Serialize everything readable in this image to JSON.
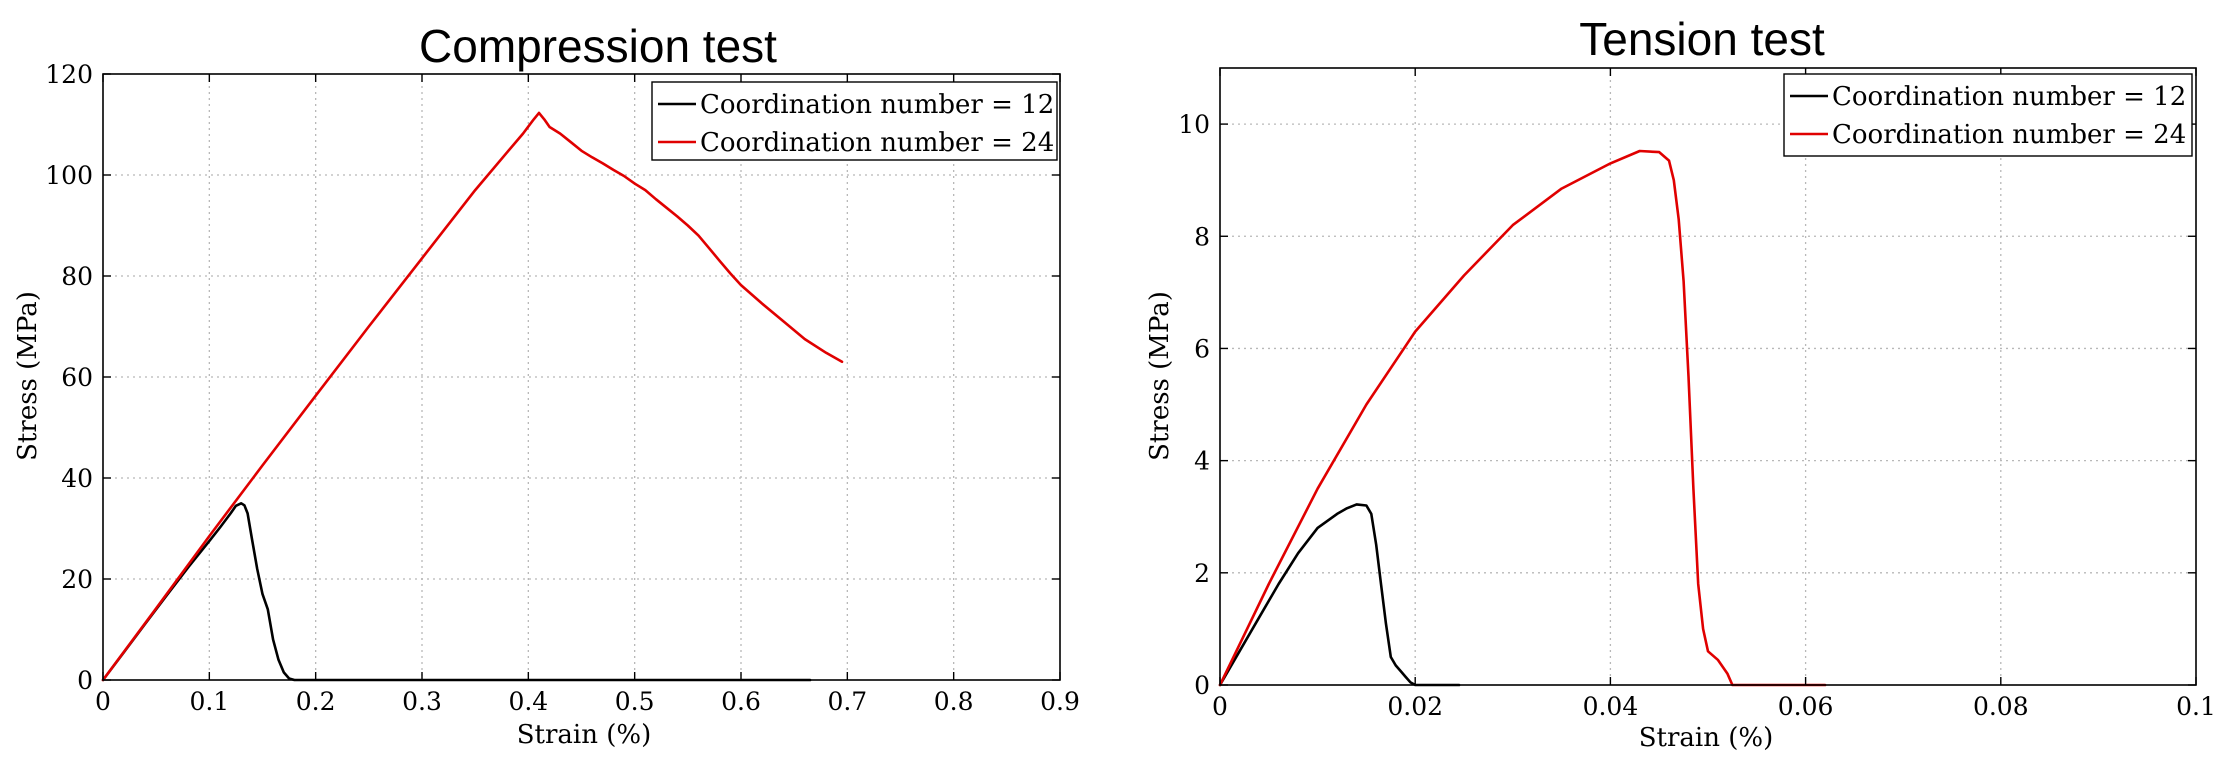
{
  "chart_data": [
    {
      "type": "line",
      "title": "Compression test",
      "xlabel": "Strain (%)",
      "ylabel": "Stress (MPa)",
      "xlim": [
        0,
        0.9
      ],
      "ylim": [
        0,
        120
      ],
      "xticks": [
        "0",
        "0.1",
        "0.2",
        "0.3",
        "0.4",
        "0.5",
        "0.6",
        "0.7",
        "0.8",
        "0.9"
      ],
      "yticks": [
        "0",
        "20",
        "40",
        "60",
        "80",
        "100",
        "120"
      ],
      "xtick_values": [
        0,
        0.1,
        0.2,
        0.3,
        0.4,
        0.5,
        0.6,
        0.7,
        0.8,
        0.9
      ],
      "ytick_values": [
        0,
        20,
        40,
        60,
        80,
        100,
        120
      ],
      "grid": true,
      "legend_position": "top-right",
      "series": [
        {
          "name": "Coordination number = 12",
          "color": "#000000",
          "points": [
            [
              0,
              0
            ],
            [
              0.02,
              5.6
            ],
            [
              0.04,
              11.2
            ],
            [
              0.06,
              16.8
            ],
            [
              0.08,
              22.3
            ],
            [
              0.1,
              27.5
            ],
            [
              0.11,
              30.2
            ],
            [
              0.12,
              33.0
            ],
            [
              0.125,
              34.5
            ],
            [
              0.13,
              35.0
            ],
            [
              0.133,
              34.6
            ],
            [
              0.136,
              33.0
            ],
            [
              0.14,
              28.0
            ],
            [
              0.145,
              22.0
            ],
            [
              0.15,
              17.0
            ],
            [
              0.155,
              14.0
            ],
            [
              0.16,
              8.0
            ],
            [
              0.165,
              4.0
            ],
            [
              0.17,
              1.5
            ],
            [
              0.175,
              0.3
            ],
            [
              0.18,
              0
            ],
            [
              0.3,
              0
            ],
            [
              0.5,
              0
            ],
            [
              0.665,
              0
            ]
          ]
        },
        {
          "name": "Coordination number = 24",
          "color": "#e00000",
          "points": [
            [
              0,
              0
            ],
            [
              0.05,
              14.2
            ],
            [
              0.1,
              28.5
            ],
            [
              0.15,
              42.5
            ],
            [
              0.2,
              56.3
            ],
            [
              0.25,
              70.0
            ],
            [
              0.3,
              83.5
            ],
            [
              0.35,
              97.0
            ],
            [
              0.38,
              104.5
            ],
            [
              0.395,
              108.2
            ],
            [
              0.405,
              111.0
            ],
            [
              0.41,
              112.3
            ],
            [
              0.415,
              111.0
            ],
            [
              0.42,
              109.5
            ],
            [
              0.43,
              108.2
            ],
            [
              0.44,
              106.5
            ],
            [
              0.45,
              104.8
            ],
            [
              0.46,
              103.5
            ],
            [
              0.47,
              102.3
            ],
            [
              0.48,
              101.0
            ],
            [
              0.49,
              99.8
            ],
            [
              0.5,
              98.3
            ],
            [
              0.51,
              97.0
            ],
            [
              0.52,
              95.2
            ],
            [
              0.53,
              93.5
            ],
            [
              0.54,
              91.8
            ],
            [
              0.55,
              90.0
            ],
            [
              0.56,
              88.0
            ],
            [
              0.57,
              85.5
            ],
            [
              0.58,
              83.0
            ],
            [
              0.59,
              80.5
            ],
            [
              0.6,
              78.2
            ],
            [
              0.62,
              74.5
            ],
            [
              0.64,
              71.0
            ],
            [
              0.66,
              67.5
            ],
            [
              0.68,
              64.8
            ],
            [
              0.695,
              63.0
            ]
          ]
        }
      ]
    },
    {
      "type": "line",
      "title": "Tension test",
      "xlabel": "Strain (%)",
      "ylabel": "Stress (MPa)",
      "xlim": [
        0,
        0.1
      ],
      "ylim": [
        0,
        11
      ],
      "xticks": [
        "0",
        "0.02",
        "0.04",
        "0.06",
        "0.08",
        "0.1"
      ],
      "yticks": [
        "0",
        "2",
        "4",
        "6",
        "8",
        "10"
      ],
      "xtick_values": [
        0,
        0.02,
        0.04,
        0.06,
        0.08,
        0.1
      ],
      "ytick_values": [
        0,
        2,
        4,
        6,
        8,
        10
      ],
      "grid": true,
      "legend_position": "top-right",
      "series": [
        {
          "name": "Coordination number = 12",
          "color": "#000000",
          "points": [
            [
              0,
              0
            ],
            [
              0.002,
              0.6
            ],
            [
              0.004,
              1.2
            ],
            [
              0.006,
              1.8
            ],
            [
              0.008,
              2.35
            ],
            [
              0.01,
              2.8
            ],
            [
              0.012,
              3.05
            ],
            [
              0.013,
              3.15
            ],
            [
              0.014,
              3.22
            ],
            [
              0.015,
              3.2
            ],
            [
              0.0155,
              3.05
            ],
            [
              0.016,
              2.5
            ],
            [
              0.0165,
              1.8
            ],
            [
              0.017,
              1.1
            ],
            [
              0.0175,
              0.5
            ],
            [
              0.018,
              0.35
            ],
            [
              0.0185,
              0.25
            ],
            [
              0.019,
              0.15
            ],
            [
              0.0195,
              0.05
            ],
            [
              0.02,
              0
            ],
            [
              0.022,
              0
            ],
            [
              0.0245,
              0
            ]
          ]
        },
        {
          "name": "Coordination number = 24",
          "color": "#e00000",
          "points": [
            [
              0,
              0
            ],
            [
              0.005,
              1.8
            ],
            [
              0.01,
              3.5
            ],
            [
              0.015,
              5.0
            ],
            [
              0.02,
              6.3
            ],
            [
              0.025,
              7.3
            ],
            [
              0.03,
              8.2
            ],
            [
              0.035,
              8.85
            ],
            [
              0.04,
              9.3
            ],
            [
              0.043,
              9.52
            ],
            [
              0.045,
              9.5
            ],
            [
              0.046,
              9.35
            ],
            [
              0.0465,
              9.0
            ],
            [
              0.047,
              8.3
            ],
            [
              0.0475,
              7.2
            ],
            [
              0.048,
              5.5
            ],
            [
              0.0485,
              3.5
            ],
            [
              0.049,
              1.8
            ],
            [
              0.0495,
              1.0
            ],
            [
              0.05,
              0.6
            ],
            [
              0.051,
              0.45
            ],
            [
              0.052,
              0.2
            ],
            [
              0.0525,
              0
            ],
            [
              0.055,
              0
            ],
            [
              0.062,
              0
            ]
          ]
        }
      ]
    }
  ]
}
